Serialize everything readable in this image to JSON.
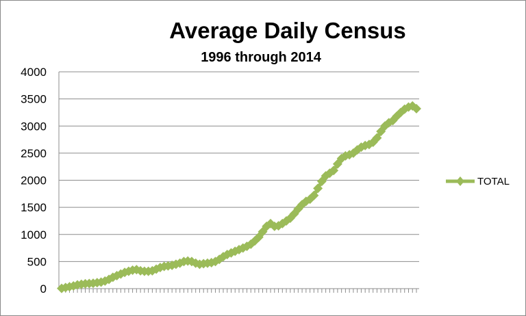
{
  "chart_data": {
    "type": "line",
    "title": "Average Daily Census",
    "subtitle": "1996 through 2014",
    "xlabel": "",
    "ylabel": "",
    "ylim": [
      0,
      4000
    ],
    "yticks": [
      "0",
      "500",
      "1000",
      "1500",
      "2000",
      "2500",
      "3000",
      "3500",
      "4000"
    ],
    "grid": "horizontal",
    "legend_position": "right",
    "series": [
      {
        "name": "TOTAL",
        "color": "#9bbb59",
        "marker": "diamond",
        "values": [
          5,
          20,
          35,
          50,
          70,
          80,
          90,
          95,
          100,
          110,
          120,
          140,
          170,
          210,
          240,
          270,
          300,
          320,
          340,
          350,
          330,
          320,
          320,
          330,
          360,
          390,
          410,
          420,
          430,
          450,
          470,
          500,
          510,
          500,
          470,
          450,
          460,
          470,
          480,
          500,
          540,
          590,
          630,
          660,
          690,
          720,
          750,
          780,
          820,
          880,
          950,
          1050,
          1150,
          1200,
          1150,
          1160,
          1200,
          1250,
          1300,
          1380,
          1470,
          1550,
          1610,
          1650,
          1720,
          1850,
          1980,
          2080,
          2130,
          2180,
          2300,
          2400,
          2450,
          2470,
          2500,
          2560,
          2610,
          2640,
          2660,
          2700,
          2780,
          2900,
          3000,
          3060,
          3100,
          3180,
          3250,
          3310,
          3350,
          3370,
          3320
        ]
      }
    ]
  }
}
